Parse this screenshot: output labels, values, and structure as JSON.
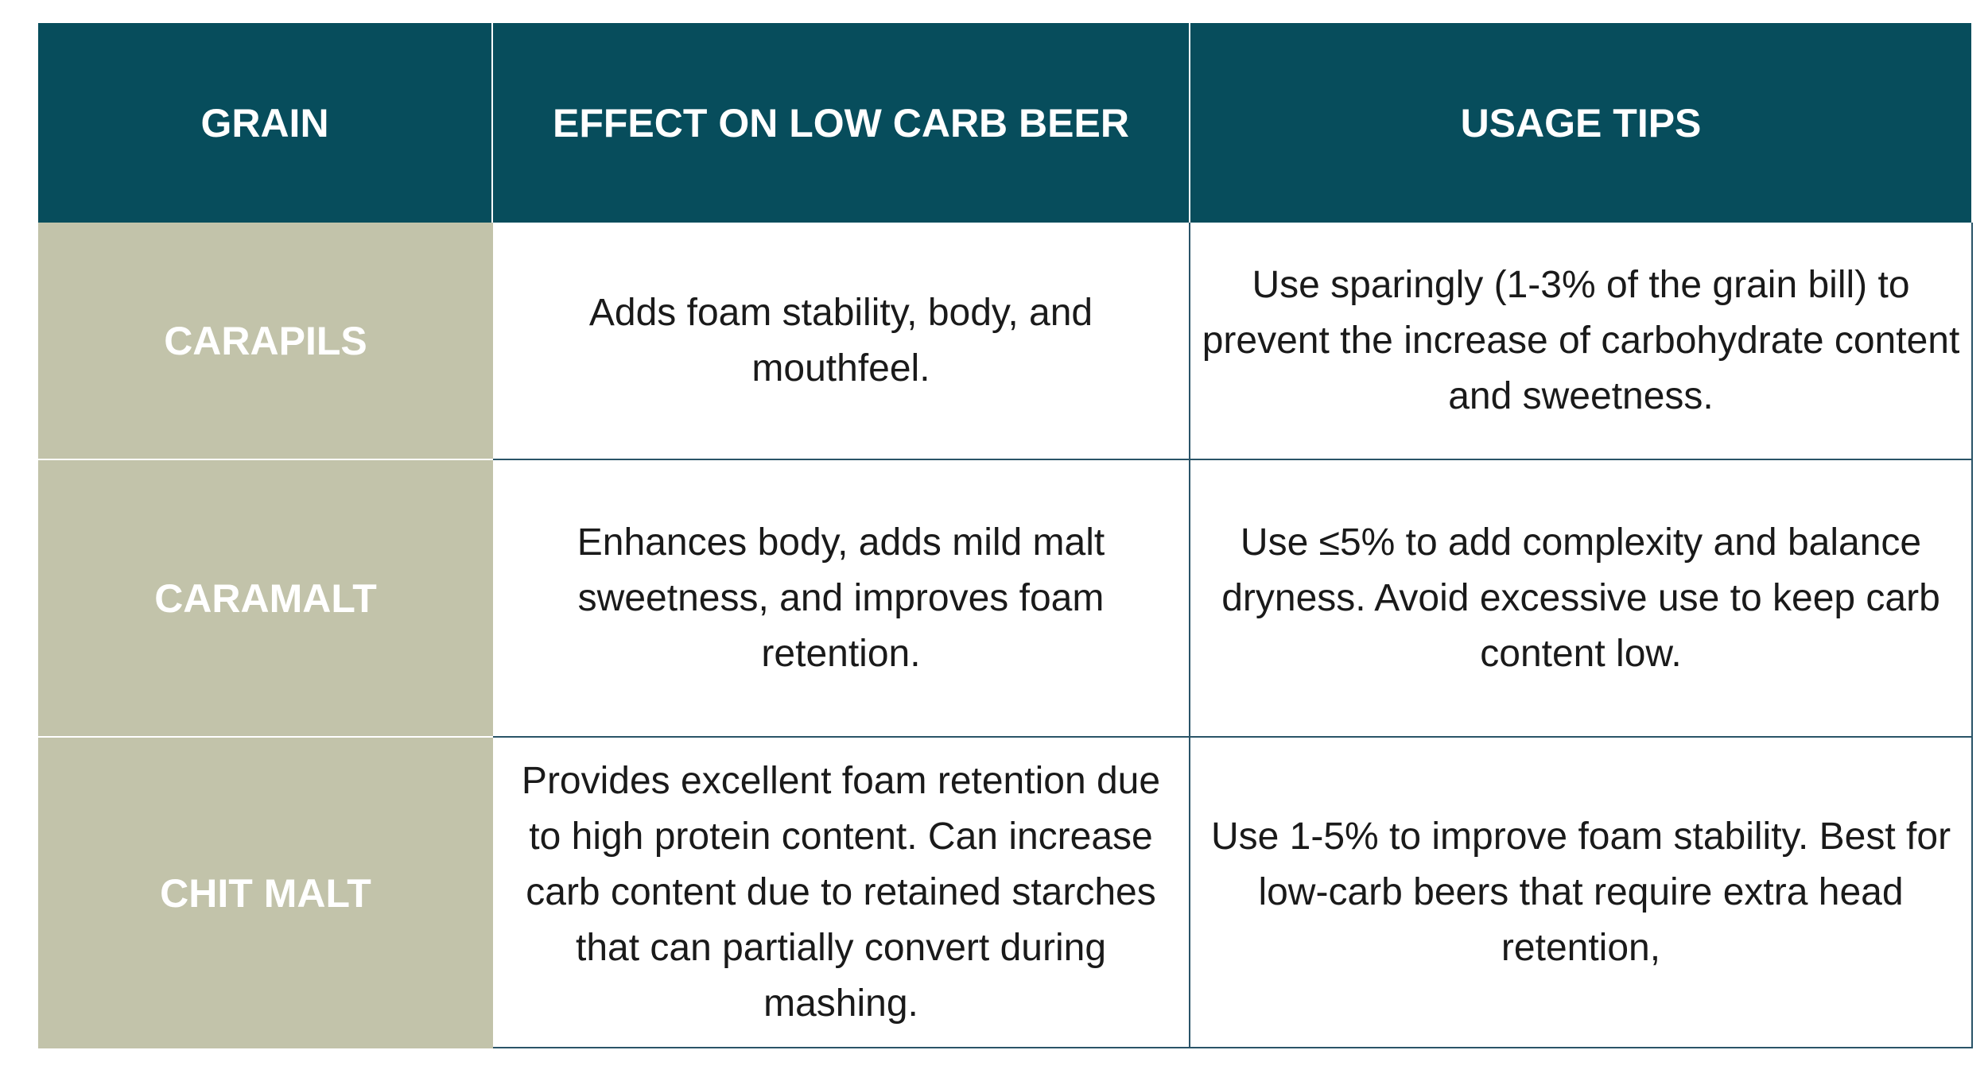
{
  "table": {
    "header": [
      "GRAIN",
      "EFFECT ON LOW CARB BEER",
      "USAGE TIPS"
    ],
    "rows": [
      [
        "CARAPILS",
        "Adds foam stability, body, and mouthfeel.",
        "Use sparingly (1-3% of the grain bill) to prevent the increase of carbohydrate content and sweetness."
      ],
      [
        "CARAMALT",
        "Enhances body, adds mild malt sweetness, and improves foam retention.",
        "Use ≤5% to add complexity and balance dryness. Avoid excessive use to keep carb content low."
      ],
      [
        "CHIT MALT",
        "Provides excellent foam retention due to high protein content. Can increase carb content due to retained starches that can partially convert during mashing.",
        "Use 1-5% to improve foam stability. Best for low-carb beers that require extra head retention,"
      ]
    ]
  }
}
